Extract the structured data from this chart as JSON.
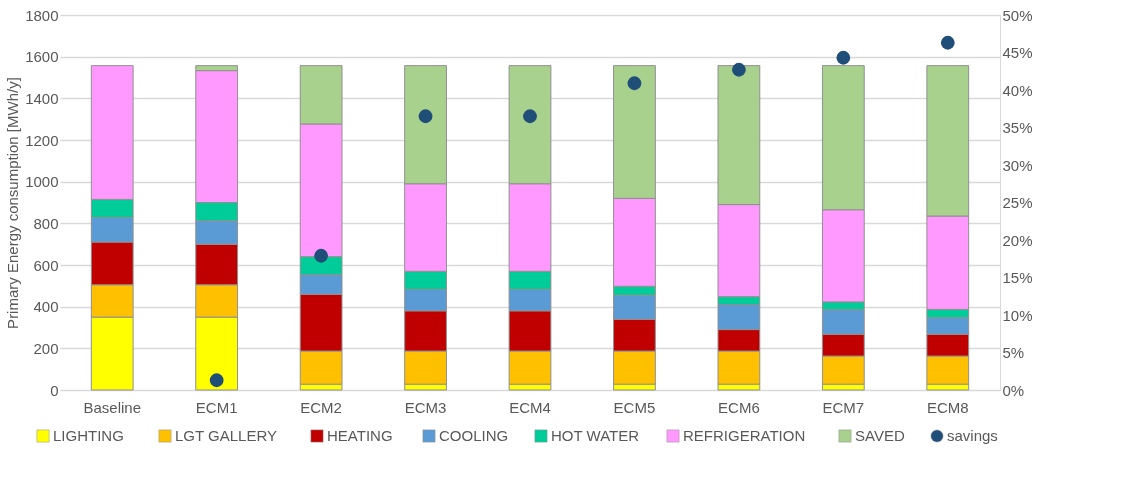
{
  "chart_data": {
    "type": "bar",
    "stacked": true,
    "ylabel": "Primary Energy consumption [MWh/y]",
    "categories": [
      "Baseline",
      "ECM1",
      "ECM2",
      "ECM3",
      "ECM4",
      "ECM5",
      "ECM6",
      "ECM7",
      "ECM8"
    ],
    "series": [
      {
        "name": "LIGHTING",
        "color": "#ffff00",
        "values": [
          350,
          350,
          28,
          28,
          28,
          28,
          28,
          28,
          28
        ]
      },
      {
        "name": "LGT GALLERY",
        "color": "#ffc000",
        "values": [
          155,
          155,
          159,
          159,
          159,
          159,
          159,
          135,
          135
        ]
      },
      {
        "name": "HEATING",
        "color": "#c00000",
        "values": [
          205,
          195,
          273,
          193,
          193,
          153,
          103,
          105,
          105
        ]
      },
      {
        "name": "COOLING",
        "color": "#5b9bd5",
        "values": [
          118,
          112,
          93,
          103,
          103,
          115,
          120,
          117,
          79
        ]
      },
      {
        "name": "HOT WATER",
        "color": "#00cc99",
        "values": [
          87,
          88,
          87,
          87,
          87,
          43,
          38,
          38,
          40
        ]
      },
      {
        "name": "REFRIGERATION",
        "color": "#ff99ff",
        "values": [
          642,
          633,
          637,
          420,
          420,
          422,
          442,
          442,
          448
        ]
      },
      {
        "name": "SAVED",
        "color": "#a9d18e",
        "values": [
          0,
          24,
          280,
          567,
          567,
          637,
          667,
          692,
          722
        ]
      },
      {
        "name": "savings",
        "type": "scatter",
        "axis": "y2",
        "color": "#1f4e79",
        "values": [
          null,
          1.3,
          17.9,
          36.5,
          36.5,
          40.9,
          42.7,
          44.3,
          46.3
        ]
      }
    ],
    "ylim": [
      0,
      1800
    ],
    "yticks": [
      0,
      200,
      400,
      600,
      800,
      1000,
      1200,
      1400,
      1600,
      1800
    ],
    "y2lim": [
      0,
      50
    ],
    "y2ticks": [
      {
        "value": 0,
        "label": "0%"
      },
      {
        "value": 5,
        "label": "5%"
      },
      {
        "value": 10,
        "label": "10%"
      },
      {
        "value": 15,
        "label": "15%"
      },
      {
        "value": 20,
        "label": "20%"
      },
      {
        "value": 25,
        "label": "25%"
      },
      {
        "value": 30,
        "label": "30%"
      },
      {
        "value": 35,
        "label": "35%"
      },
      {
        "value": 40,
        "label": "40%"
      },
      {
        "value": 45,
        "label": "45%"
      },
      {
        "value": 50,
        "label": "50%"
      }
    ],
    "grid": "y",
    "legend": "bottom",
    "marker": "circle"
  }
}
